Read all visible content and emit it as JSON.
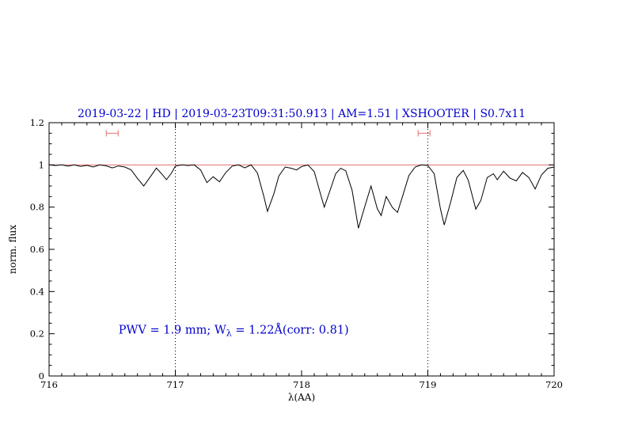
{
  "title": "2019-03-22 | HD | 2019-03-23T09:31:50.913 | AM=1.51 | XSHOOTER | S0.7x11",
  "colors": {
    "title": "#0000cd",
    "annotation": "#0000cd",
    "continuum": "#e07070",
    "range_marker": "#e07070",
    "spectrum": "#000000",
    "axis": "#000000"
  },
  "chart_data": {
    "type": "line",
    "title": "2019-03-22 | HD | 2019-03-23T09:31:50.913 | AM=1.51 | XSHOOTER | S0.7x11",
    "xlabel": "λ(AA)",
    "ylabel": "norm. flux",
    "xlim": [
      716,
      720
    ],
    "ylim": [
      0,
      1.2
    ],
    "x_ticks": [
      716,
      717,
      718,
      719,
      720
    ],
    "x_tick_labels": [
      "716",
      "717",
      "718",
      "719",
      "720"
    ],
    "x_minor_step": 0.1,
    "y_ticks": [
      0,
      0.2,
      0.4,
      0.6,
      0.8,
      1,
      1.2
    ],
    "y_tick_labels": [
      "0",
      "0.2",
      "0.4",
      "0.6",
      "0.8",
      "1",
      "1.2"
    ],
    "y_minor_step": 0.05,
    "grid": false,
    "legend": "none",
    "dotted_vlines": [
      717,
      719
    ],
    "continuum_y": 1.0,
    "range_markers": [
      {
        "center": 716.5,
        "half_width": 0.047,
        "y": 1.15
      },
      {
        "center": 718.97,
        "half_width": 0.047,
        "y": 1.15
      }
    ],
    "annotation": {
      "text": "PWV = 1.9 mm; W_λ = 1.22Å(corr: 0.81)",
      "parts": [
        "PWV = 1.9 mm; W",
        "λ",
        " = 1.22Å(corr: 0.81)"
      ],
      "x": 716.55,
      "y": 0.2
    },
    "series": [
      {
        "name": "spectrum",
        "x": [
          716.0,
          716.05,
          716.1,
          716.15,
          716.2,
          716.25,
          716.3,
          716.35,
          716.4,
          716.45,
          716.5,
          716.55,
          716.6,
          716.65,
          716.7,
          716.75,
          716.8,
          716.85,
          716.9,
          716.93,
          716.97,
          717.0,
          717.05,
          717.1,
          717.15,
          717.2,
          717.25,
          717.3,
          717.35,
          717.4,
          717.45,
          717.5,
          717.55,
          717.6,
          717.65,
          717.7,
          717.73,
          717.78,
          717.82,
          717.87,
          717.92,
          717.96,
          718.0,
          718.05,
          718.1,
          718.15,
          718.18,
          718.22,
          718.27,
          718.31,
          718.35,
          718.4,
          718.45,
          718.5,
          718.55,
          718.6,
          718.63,
          718.67,
          718.72,
          718.76,
          718.8,
          718.85,
          718.9,
          718.95,
          719.0,
          719.05,
          719.1,
          719.13,
          719.18,
          719.23,
          719.28,
          719.32,
          719.38,
          719.42,
          719.47,
          719.52,
          719.55,
          719.6,
          719.65,
          719.7,
          719.75,
          719.8,
          719.85,
          719.9,
          719.95,
          720.0
        ],
        "y": [
          1.0,
          0.997,
          1.0,
          0.994,
          1.0,
          0.993,
          0.998,
          0.99,
          1.0,
          0.996,
          0.986,
          0.995,
          0.99,
          0.976,
          0.936,
          0.9,
          0.942,
          0.985,
          0.952,
          0.93,
          0.962,
          0.994,
          1.0,
          0.997,
          1.0,
          0.976,
          0.916,
          0.944,
          0.92,
          0.964,
          0.994,
          1.0,
          0.986,
          1.0,
          0.962,
          0.852,
          0.78,
          0.862,
          0.948,
          0.99,
          0.984,
          0.976,
          0.992,
          1.0,
          0.968,
          0.862,
          0.8,
          0.87,
          0.958,
          0.984,
          0.972,
          0.88,
          0.7,
          0.802,
          0.9,
          0.792,
          0.76,
          0.85,
          0.798,
          0.775,
          0.852,
          0.95,
          0.99,
          1.0,
          0.997,
          0.958,
          0.79,
          0.715,
          0.822,
          0.94,
          0.974,
          0.928,
          0.79,
          0.832,
          0.94,
          0.958,
          0.93,
          0.97,
          0.938,
          0.924,
          0.964,
          0.94,
          0.886,
          0.952,
          0.984,
          0.99
        ]
      }
    ]
  }
}
